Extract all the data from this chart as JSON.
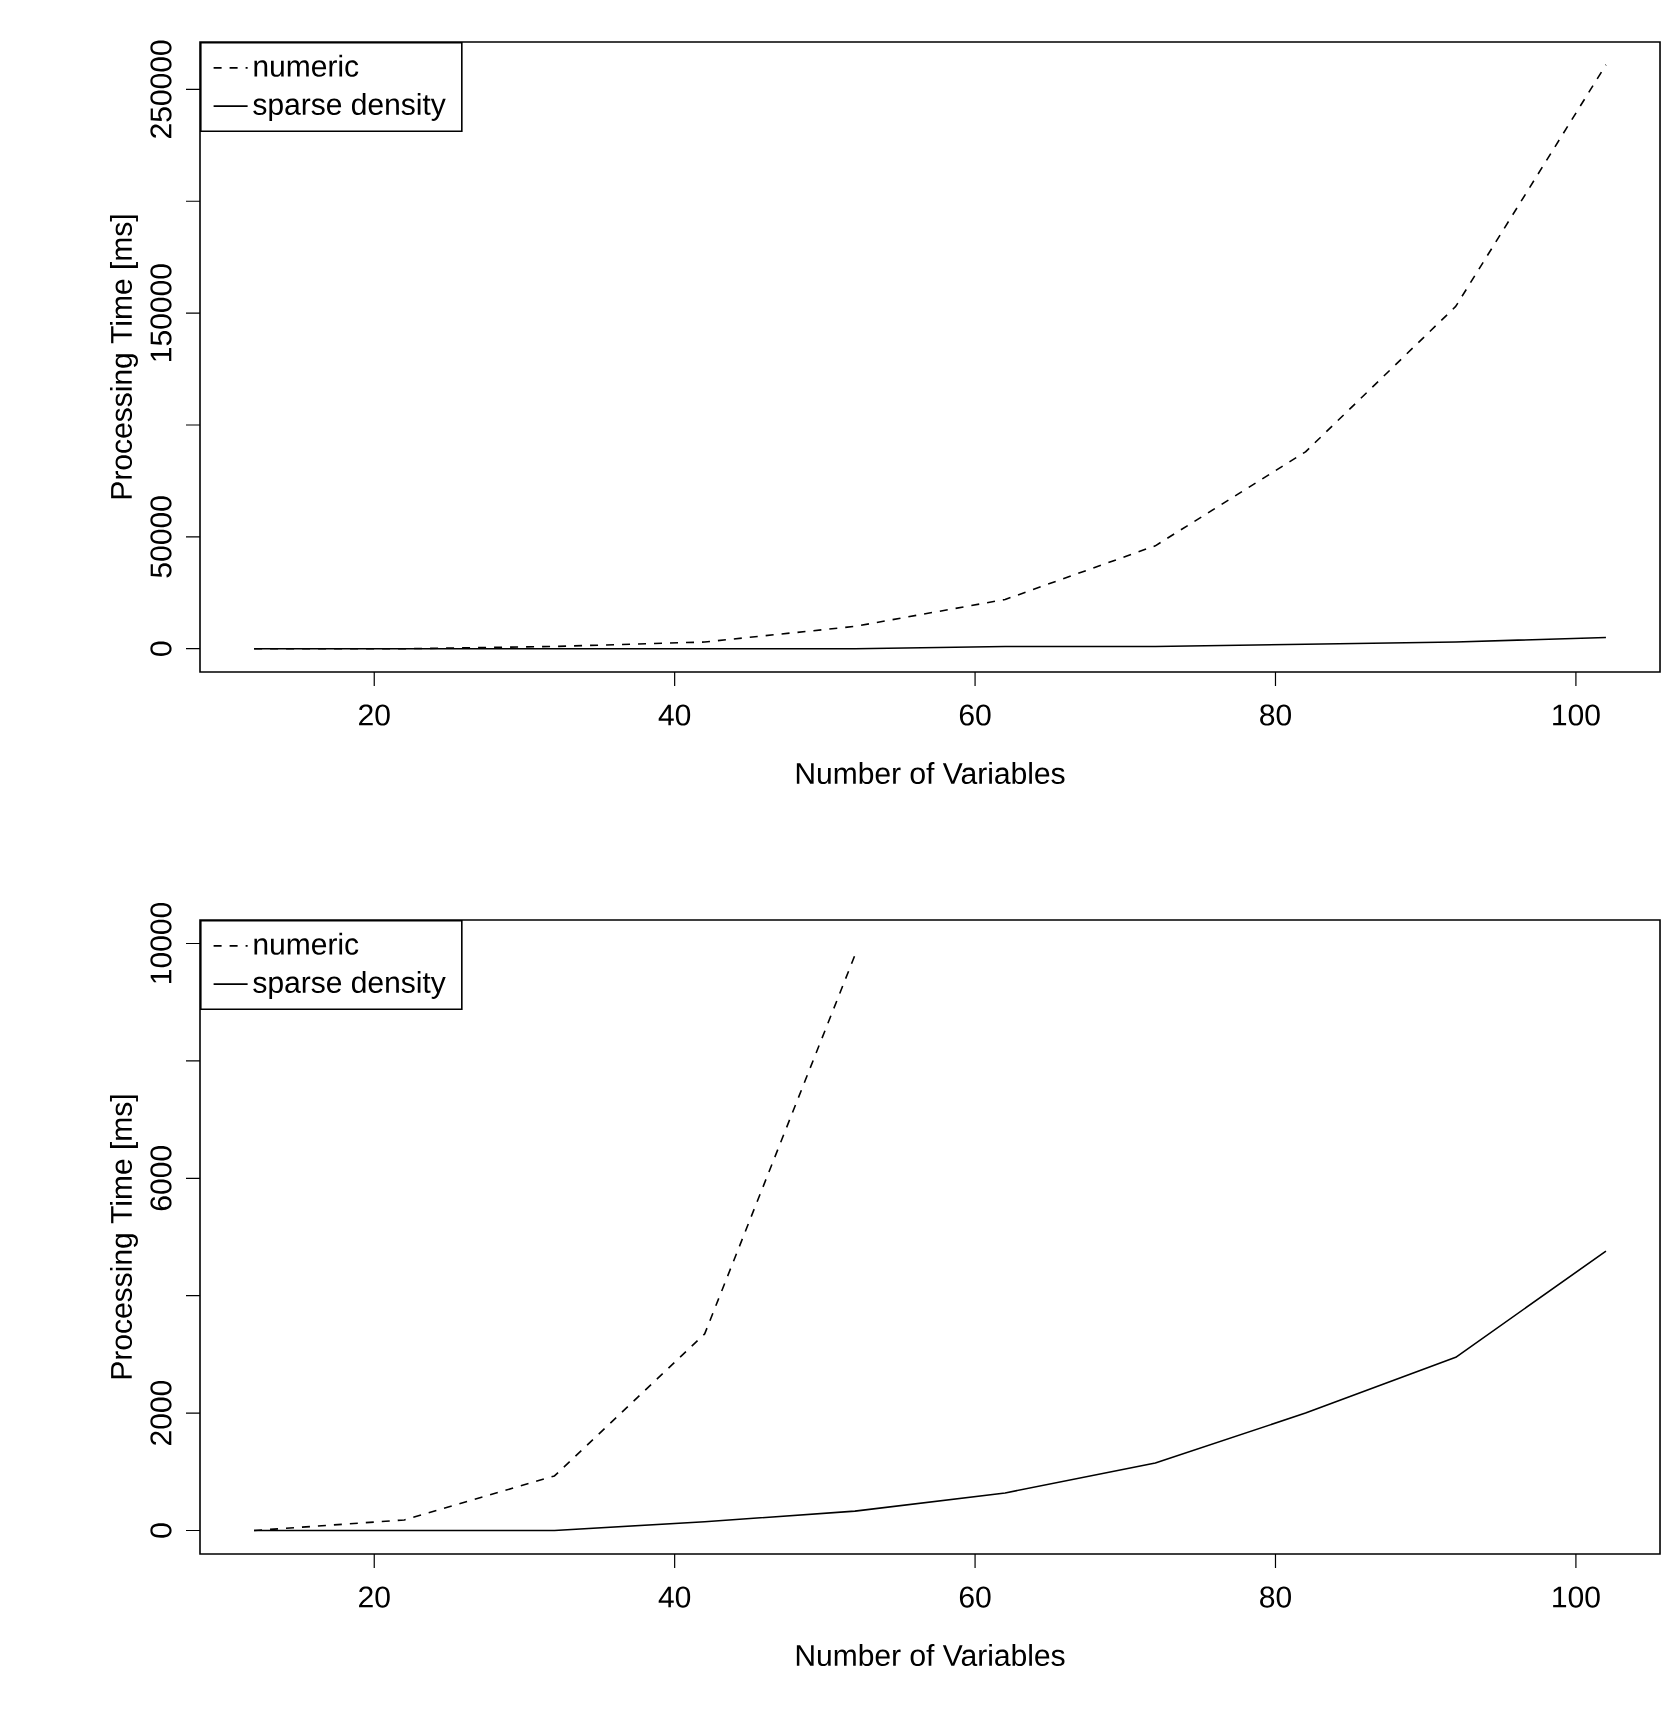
{
  "chart_data": [
    {
      "type": "line",
      "xlabel": "Number of Variables",
      "ylabel": "Processing Time [ms]",
      "x": [
        12,
        22,
        32,
        42,
        52,
        62,
        72,
        82,
        92,
        102
      ],
      "series": [
        {
          "name": "numeric",
          "color": "#000000",
          "line_style": "dashed",
          "values": [
            0,
            0,
            1000,
            3000,
            10000,
            22000,
            46000,
            88000,
            153000,
            261000
          ]
        },
        {
          "name": "sparse density",
          "color": "#000000",
          "line_style": "solid",
          "values": [
            0,
            0,
            0,
            0,
            0,
            1000,
            1000,
            2000,
            3000,
            5000
          ]
        }
      ],
      "xlim": [
        8.4,
        105.6
      ],
      "ylim": [
        -10400,
        271200
      ],
      "xticks": [
        20,
        40,
        60,
        80,
        100
      ],
      "yticks": [
        0,
        50000,
        {
          "value": 100000,
          "label": null
        },
        150000,
        {
          "value": 200000,
          "label": null
        },
        250000
      ],
      "legend": "top left",
      "grid": false
    },
    {
      "type": "line",
      "xlabel": "Number of Variables",
      "ylabel": "Processing Time [ms]",
      "x": [
        12,
        22,
        32,
        42,
        52,
        62,
        72,
        82,
        92,
        102
      ],
      "series": [
        {
          "name": "numeric",
          "color": "#000000",
          "line_style": "dashed",
          "values": [
            0,
            180,
            930,
            3350,
            9800,
            null,
            null,
            null,
            null,
            null
          ]
        },
        {
          "name": "sparse density",
          "color": "#000000",
          "line_style": "solid",
          "values": [
            0,
            0,
            0,
            150,
            330,
            640,
            1150,
            2000,
            2950,
            4760
          ]
        }
      ],
      "xlim": [
        8.4,
        105.6
      ],
      "ylim": [
        -400,
        10400
      ],
      "xticks": [
        20,
        40,
        60,
        80,
        100
      ],
      "yticks": [
        0,
        2000,
        {
          "value": 4000,
          "label": null
        },
        6000,
        {
          "value": 8000,
          "label": null
        },
        10000
      ],
      "legend": "top left",
      "grid": false
    }
  ]
}
